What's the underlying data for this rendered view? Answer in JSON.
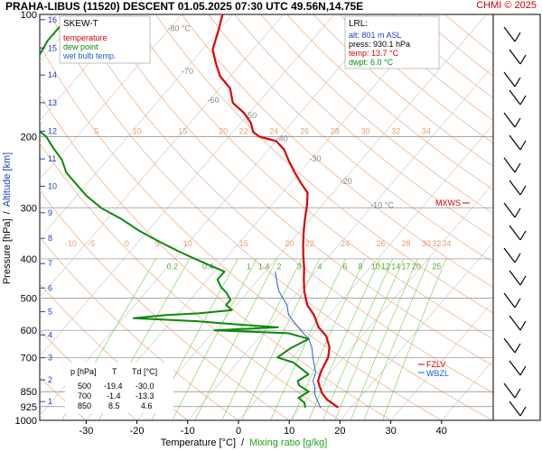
{
  "header": {
    "title": "PRAHA-LIBUS (11520)   DESCENT   01.05.2025 07:30 UTC  49.56N,14.75E",
    "credit": "CHMI © 2025"
  },
  "legend": {
    "title": "SKEW-T",
    "items": [
      {
        "label": "temperature",
        "color": "#e00000"
      },
      {
        "label": "dew point",
        "color": "#0a8a0a"
      },
      {
        "label": "wet bulb temp.",
        "color": "#1c5fd6"
      }
    ]
  },
  "lrl": {
    "title": "LRL:",
    "alt": "alt: 801 m ASL",
    "press": "press: 930.1 hPa",
    "temp": "temp: 13.7 °C",
    "dwpt": "dwpt: 6.0 °C"
  },
  "table": {
    "headers": [
      "p [hPa]",
      "T",
      "Td [°C]"
    ],
    "rows": [
      [
        "500",
        "-19.4",
        "-30.0"
      ],
      [
        "700",
        "-1.4",
        "-13.3"
      ],
      [
        "850",
        "8.5",
        "4.6"
      ]
    ]
  },
  "markers": {
    "mxws": "MXWS",
    "fzlv": "FZLV",
    "wbzl": "WBZL"
  },
  "chart_data": {
    "type": "line",
    "title": "SKEW-T",
    "xlabel": "Temperature [°C]",
    "xlabel_sep": "/",
    "xlabel2": "Mixing ratio [g/kg]",
    "ylabel": "Pressure [hPa]",
    "ylabel_sep": "/",
    "ylabel2": "Altitude [km]",
    "xlim": [
      -35,
      45
    ],
    "ylim": [
      1000,
      100
    ],
    "y_scale": "log",
    "x_ticks": [
      -30,
      -20,
      -10,
      0,
      10,
      20,
      30,
      40
    ],
    "pressure_levels": [
      100,
      200,
      300,
      400,
      500,
      600,
      700,
      850,
      925,
      1000
    ],
    "altitude_ticks": [
      {
        "km": 16,
        "p": 103
      },
      {
        "km": 15,
        "p": 121
      },
      {
        "km": 14,
        "p": 141
      },
      {
        "km": 13,
        "p": 165
      },
      {
        "km": 12,
        "p": 194
      },
      {
        "km": 11,
        "p": 227
      },
      {
        "km": 10,
        "p": 265
      },
      {
        "km": 9,
        "p": 308
      },
      {
        "km": 8,
        "p": 356
      },
      {
        "km": 7,
        "p": 411
      },
      {
        "km": 6,
        "p": 472
      },
      {
        "km": 5,
        "p": 540
      },
      {
        "km": 4,
        "p": 616
      },
      {
        "km": 3,
        "p": 701
      },
      {
        "km": 2,
        "p": 795
      },
      {
        "km": 1,
        "p": 899
      }
    ],
    "isotherm_labels": [
      {
        "t": -80,
        "p": 110,
        "label": "-80 °C"
      },
      {
        "t": -70,
        "p": 140,
        "label": "-70"
      },
      {
        "t": -60,
        "p": 165,
        "label": "-60"
      },
      {
        "t": -50,
        "p": 180,
        "label": "-50"
      },
      {
        "t": -40,
        "p": 205,
        "label": "-40"
      },
      {
        "t": -30,
        "p": 230,
        "label": "-30"
      },
      {
        "t": -20,
        "p": 262,
        "label": "-20"
      },
      {
        "t": -10,
        "p": 300,
        "label": "-10 °C"
      }
    ],
    "adiabat_labels": [
      {
        "x": -28,
        "p": 193,
        "label": "5"
      },
      {
        "x": -20,
        "p": 193,
        "label": "10"
      },
      {
        "x": -11,
        "p": 193,
        "label": "15"
      },
      {
        "x": -3,
        "p": 193,
        "label": "20"
      },
      {
        "x": 1,
        "p": 193,
        "label": "22"
      },
      {
        "x": 7,
        "p": 193,
        "label": "24"
      },
      {
        "x": 13,
        "p": 193,
        "label": "26"
      },
      {
        "x": 19,
        "p": 193,
        "label": "28"
      },
      {
        "x": 25,
        "p": 193,
        "label": "30"
      },
      {
        "x": 31,
        "p": 193,
        "label": "32"
      },
      {
        "x": 37,
        "p": 193,
        "label": "34"
      },
      {
        "x": -33,
        "p": 365,
        "label": "-10"
      },
      {
        "x": -29,
        "p": 365,
        "label": "-5"
      },
      {
        "x": -22,
        "p": 365,
        "label": "0"
      },
      {
        "x": -16,
        "p": 365,
        "label": "5"
      },
      {
        "x": -10,
        "p": 365,
        "label": "10"
      },
      {
        "x": 1,
        "p": 365,
        "label": "15"
      },
      {
        "x": 10,
        "p": 365,
        "label": "20"
      },
      {
        "x": 14,
        "p": 365,
        "label": "22"
      },
      {
        "x": 21,
        "p": 365,
        "label": "24"
      },
      {
        "x": 28,
        "p": 365,
        "label": "26"
      },
      {
        "x": 33,
        "p": 365,
        "label": "28"
      },
      {
        "x": 37,
        "p": 365,
        "label": "30"
      },
      {
        "x": 39,
        "p": 365,
        "label": "32"
      },
      {
        "x": 41,
        "p": 365,
        "label": "34"
      }
    ],
    "mixing_ratio_labels": [
      {
        "x": -13,
        "label": "0.2"
      },
      {
        "x": -6,
        "label": "0.4"
      },
      {
        "x": 2,
        "label": "1"
      },
      {
        "x": 5,
        "label": "1.4"
      },
      {
        "x": 8,
        "label": "2"
      },
      {
        "x": 12,
        "label": "3"
      },
      {
        "x": 16,
        "label": "4"
      },
      {
        "x": 21,
        "label": "6"
      },
      {
        "x": 24,
        "label": "8"
      },
      {
        "x": 27,
        "label": "10"
      },
      {
        "x": 29,
        "label": "12"
      },
      {
        "x": 31,
        "label": "14"
      },
      {
        "x": 33,
        "label": "17"
      },
      {
        "x": 35,
        "label": "20"
      },
      {
        "x": 39,
        "label": "25"
      }
    ],
    "series": [
      {
        "name": "temperature",
        "color": "#e00000",
        "points": [
          [
            17.5,
            930
          ],
          [
            14,
            890
          ],
          [
            12,
            860
          ],
          [
            10.5,
            830
          ],
          [
            9,
            800
          ],
          [
            8,
            760
          ],
          [
            7,
            700
          ],
          [
            5.5,
            660
          ],
          [
            3,
            620
          ],
          [
            0,
            590
          ],
          [
            -3,
            550
          ],
          [
            -6,
            520
          ],
          [
            -9,
            480
          ],
          [
            -11,
            450
          ],
          [
            -13,
            420
          ],
          [
            -15,
            395
          ],
          [
            -17,
            370
          ],
          [
            -19,
            345
          ],
          [
            -21,
            320
          ],
          [
            -23,
            295
          ],
          [
            -25,
            275
          ],
          [
            -28,
            260
          ],
          [
            -31,
            245
          ],
          [
            -34,
            230
          ],
          [
            -37,
            215
          ],
          [
            -40,
            205
          ],
          [
            -44,
            200
          ],
          [
            -46,
            195
          ],
          [
            -48,
            185
          ],
          [
            -51,
            175
          ],
          [
            -55,
            165
          ],
          [
            -58,
            152
          ],
          [
            -62,
            142
          ],
          [
            -65,
            132
          ],
          [
            -68,
            122
          ],
          [
            -70,
            110
          ],
          [
            -72,
            100
          ]
        ]
      },
      {
        "name": "dew point",
        "color": "#0a8a0a",
        "points": [
          [
            11,
            930
          ],
          [
            10,
            905
          ],
          [
            8,
            880
          ],
          [
            9,
            850
          ],
          [
            6,
            820
          ],
          [
            5,
            800
          ],
          [
            6,
            770
          ],
          [
            3,
            740
          ],
          [
            1,
            720
          ],
          [
            -3,
            700
          ],
          [
            -2,
            665
          ],
          [
            0,
            630
          ],
          [
            -5,
            610
          ],
          [
            -20,
            600
          ],
          [
            -8,
            590
          ],
          [
            -17,
            580
          ],
          [
            -25,
            570
          ],
          [
            -38,
            560
          ],
          [
            -32,
            550
          ],
          [
            -26,
            545
          ],
          [
            -20,
            535
          ],
          [
            -22,
            520
          ],
          [
            -22,
            505
          ],
          [
            -24,
            485
          ],
          [
            -26,
            470
          ],
          [
            -28,
            450
          ],
          [
            -28,
            430
          ],
          [
            -32,
            415
          ],
          [
            -36,
            400
          ],
          [
            -40,
            385
          ],
          [
            -44,
            370
          ],
          [
            -48,
            355
          ],
          [
            -52,
            340
          ],
          [
            -57,
            320
          ],
          [
            -63,
            300
          ],
          [
            -68,
            280
          ],
          [
            -72,
            262
          ],
          [
            -76,
            245
          ],
          [
            -79,
            228
          ],
          [
            -83,
            212
          ],
          [
            -86,
            200
          ],
          [
            -89,
            192
          ],
          [
            -92,
            180
          ],
          [
            -95,
            165
          ],
          [
            -98,
            150
          ],
          [
            -100,
            138
          ],
          [
            -101,
            128
          ],
          [
            -102,
            116
          ],
          [
            -102,
            104
          ]
        ]
      },
      {
        "name": "wet bulb temp.",
        "color": "#1c5fd6",
        "points": [
          [
            14,
            930
          ],
          [
            12,
            890
          ],
          [
            10.5,
            860
          ],
          [
            9.5,
            830
          ],
          [
            8,
            800
          ],
          [
            7,
            760
          ],
          [
            5,
            720
          ],
          [
            4,
            700
          ],
          [
            2,
            660
          ],
          [
            0,
            630
          ],
          [
            -3,
            600
          ],
          [
            -5,
            580
          ],
          [
            -8,
            550
          ],
          [
            -10,
            520
          ],
          [
            -12,
            500
          ],
          [
            -14,
            480
          ],
          [
            -16,
            455
          ],
          [
            -18,
            430
          ]
        ]
      }
    ]
  }
}
